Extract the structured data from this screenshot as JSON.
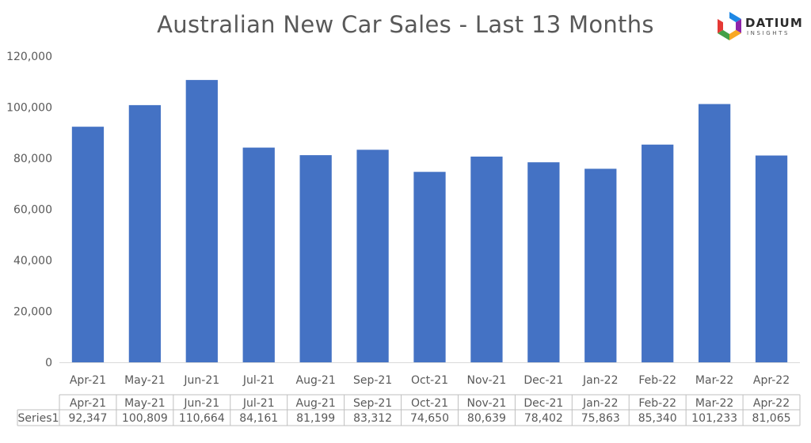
{
  "chart_data": {
    "type": "bar",
    "title": "Australian New Car Sales  - Last 13 Months",
    "categories": [
      "Apr-21",
      "May-21",
      "Jun-21",
      "Jul-21",
      "Aug-21",
      "Sep-21",
      "Oct-21",
      "Nov-21",
      "Dec-21",
      "Jan-22",
      "Feb-22",
      "Mar-22",
      "Apr-22"
    ],
    "series": [
      {
        "name": "Series1",
        "values": [
          92347,
          100809,
          110664,
          84161,
          81199,
          83312,
          74650,
          80639,
          78402,
          75863,
          85340,
          101233,
          81065
        ]
      }
    ],
    "value_labels": [
      "92,347",
      "100,809",
      "110,664",
      "84,161",
      "81,199",
      "83,312",
      "74,650",
      "80,639",
      "78,402",
      "75,863",
      "85,340",
      "101,233",
      "81,065"
    ],
    "yticks": [
      "0",
      "20,000",
      "40,000",
      "60,000",
      "80,000",
      "100,000",
      "120,000"
    ],
    "ylim": [
      0,
      120000
    ],
    "bar_color": "#4472C4",
    "grid": false,
    "legend": "none",
    "data_table": true
  },
  "logo": {
    "word": "DATIUM",
    "subword": "INSIGHTS",
    "colors": [
      "#1e88e5",
      "#8e24aa",
      "#f9a825",
      "#43a047",
      "#e53935"
    ]
  }
}
